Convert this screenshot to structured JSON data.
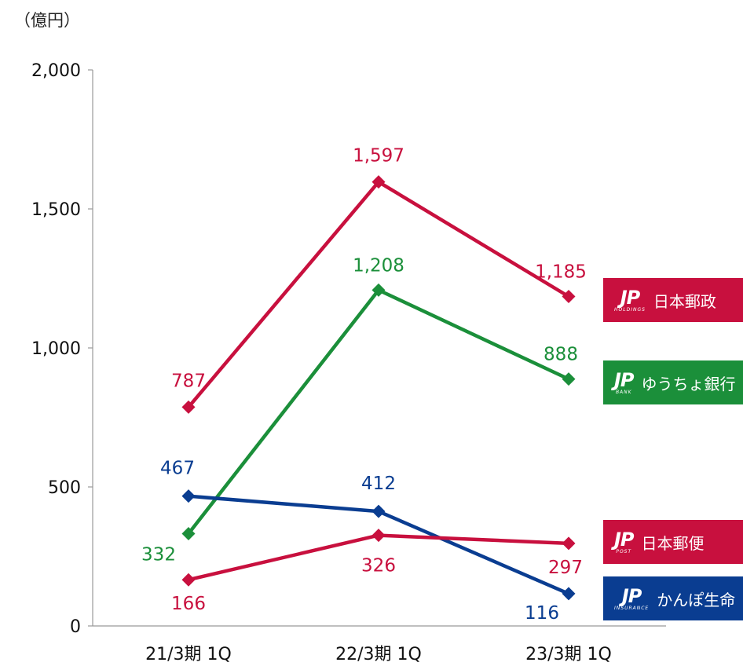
{
  "unit_label": "（億円）",
  "colors": {
    "holdings": "#C8103E",
    "bank": "#1B8F3A",
    "insurance": "#0A3D91",
    "post": "#C8103E",
    "axis": "#999999"
  },
  "chart_data": {
    "type": "line",
    "categories": [
      "21/3期 1Q",
      "22/3期 1Q",
      "23/3期 1Q"
    ],
    "ylim": [
      0,
      2000
    ],
    "yticks": [
      0,
      500,
      1000,
      1500,
      2000
    ],
    "ytick_labels": [
      "0",
      "500",
      "1,000",
      "1,500",
      "2,000"
    ],
    "grid": false,
    "series": [
      {
        "key": "holdings",
        "name": "日本郵政",
        "color": "#C8103E",
        "values": [
          787,
          1597,
          1185
        ],
        "labels": [
          "787",
          "1,597",
          "1,185"
        ]
      },
      {
        "key": "bank",
        "name": "ゆうちょ銀行",
        "color": "#1B8F3A",
        "values": [
          332,
          1208,
          888
        ],
        "labels": [
          "332",
          "1,208",
          "888"
        ]
      },
      {
        "key": "insurance",
        "name": "かんぽ生命",
        "color": "#0A3D91",
        "values": [
          467,
          412,
          116
        ],
        "labels": [
          "467",
          "412",
          "116"
        ]
      },
      {
        "key": "post",
        "name": "日本郵便",
        "color": "#C8103E",
        "values": [
          166,
          326,
          297
        ],
        "labels": [
          "166",
          "326",
          "297"
        ]
      }
    ]
  },
  "legend": [
    {
      "name": "日本郵政",
      "logo": "JP",
      "logo_sub": "HOLDINGS",
      "color": "#C8103E"
    },
    {
      "name": "ゆうちょ銀行",
      "logo": "JP",
      "logo_sub": "BANK",
      "color": "#1B8F3A"
    },
    {
      "name": "日本郵便",
      "logo": "JP",
      "logo_sub": "POST",
      "color": "#C8103E"
    },
    {
      "name": "かんぽ生命",
      "logo": "JP",
      "logo_sub": "INSURANCE",
      "color": "#0A3D91"
    }
  ]
}
